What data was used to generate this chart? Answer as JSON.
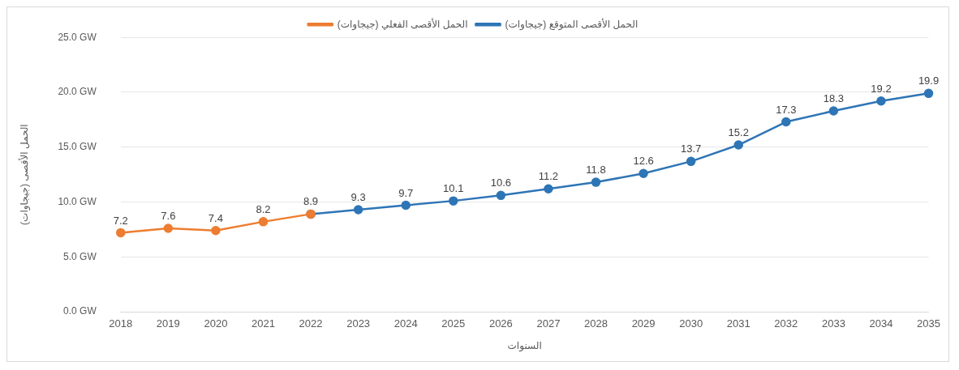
{
  "chart_data": {
    "type": "line",
    "xlabel": "السنوات",
    "ylabel": "الحمل الأقصى (جيجاوات)",
    "categories": [
      "2018",
      "2019",
      "2020",
      "2021",
      "2022",
      "2023",
      "2024",
      "2025",
      "2026",
      "2027",
      "2028",
      "2029",
      "2030",
      "2031",
      "2032",
      "2033",
      "2034",
      "2035"
    ],
    "series": [
      {
        "name": "الحمل الأقصى الفعلي (جيجاوات)",
        "color": "#ed7d31",
        "values": [
          7.2,
          7.6,
          7.4,
          8.2,
          8.9,
          null,
          null,
          null,
          null,
          null,
          null,
          null,
          null,
          null,
          null,
          null,
          null,
          null
        ],
        "value_labels": [
          "7.2",
          "7.6",
          "7.4",
          "8.2",
          null,
          null,
          null,
          null,
          null,
          null,
          null,
          null,
          null,
          null,
          null,
          null,
          null,
          null
        ]
      },
      {
        "name": "الحمل الأقصى المتوقع (جيجاوات)",
        "color": "#2e75b6",
        "values": [
          null,
          null,
          null,
          null,
          8.9,
          9.3,
          9.7,
          10.1,
          10.6,
          11.2,
          11.8,
          12.6,
          13.7,
          15.2,
          17.3,
          18.3,
          19.2,
          19.9
        ],
        "value_labels": [
          null,
          null,
          null,
          null,
          "8.9",
          "9.3",
          "9.7",
          "10.1",
          "10.6",
          "11.2",
          "11.8",
          "12.6",
          "13.7",
          "15.2",
          "17.3",
          "18.3",
          "19.2",
          "19.9"
        ]
      }
    ],
    "ylim": [
      0,
      25
    ],
    "yticks": [
      {
        "value": 0,
        "label": "0.0 GW"
      },
      {
        "value": 5,
        "label": "5.0 GW"
      },
      {
        "value": 10,
        "label": "10.0 GW"
      },
      {
        "value": 15,
        "label": "15.0 GW"
      },
      {
        "value": 20,
        "label": "20.0 GW"
      },
      {
        "value": 25,
        "label": "25.0 GW"
      }
    ],
    "grid": "y",
    "legend": "top",
    "marker": "circle",
    "line_style": "solid"
  }
}
